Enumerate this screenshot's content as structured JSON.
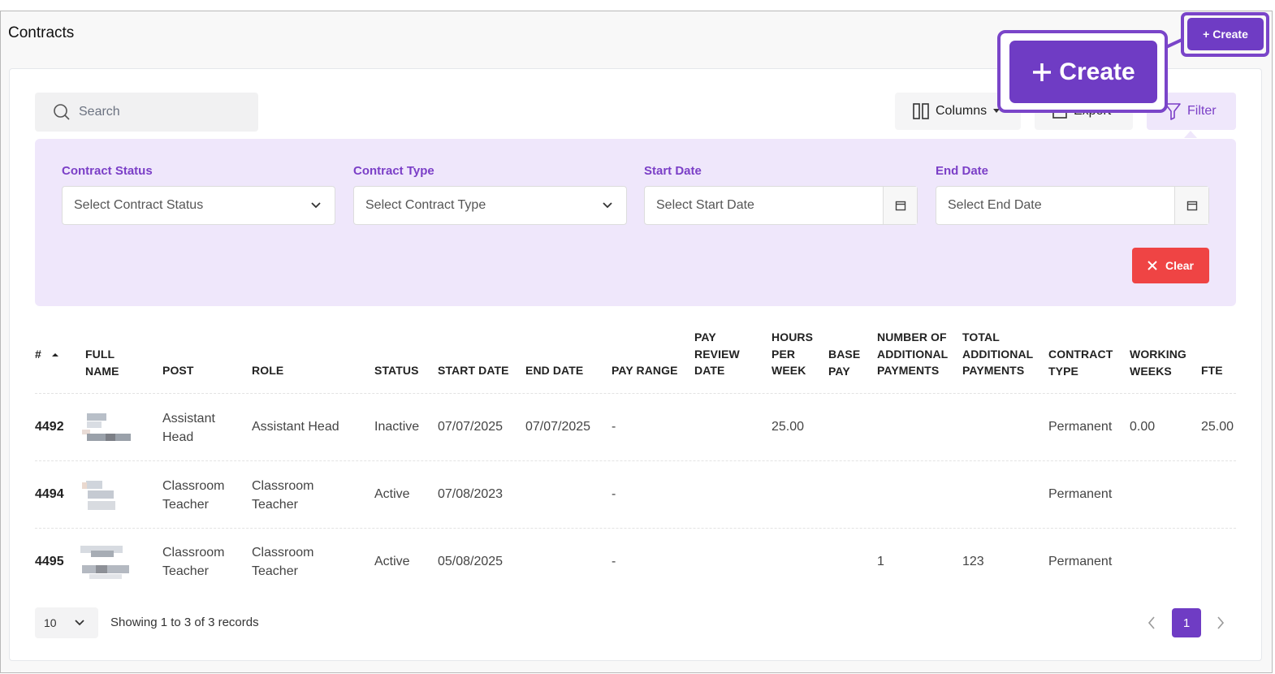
{
  "page": {
    "title": "Contracts"
  },
  "actions": {
    "create_label": "Create",
    "create_zoom_label": "Create"
  },
  "toolbar": {
    "search_placeholder": "Search",
    "columns_label": "Columns",
    "export_label": "Export",
    "filter_label": "Filter"
  },
  "filters": {
    "contract_status": {
      "label": "Contract Status",
      "placeholder": "Select Contract Status"
    },
    "contract_type": {
      "label": "Contract Type",
      "placeholder": "Select Contract Type"
    },
    "start_date": {
      "label": "Start Date",
      "placeholder": "Select Start Date"
    },
    "end_date": {
      "label": "End Date",
      "placeholder": "Select End Date"
    },
    "clear_label": "Clear"
  },
  "table": {
    "headers": {
      "id": "#",
      "full_name": [
        "FULL",
        "NAME"
      ],
      "post": "POST",
      "role": "ROLE",
      "status": "STATUS",
      "start_date": "START DATE",
      "end_date": "END DATE",
      "pay_range": "PAY RANGE",
      "pay_review_date": [
        "PAY",
        "REVIEW",
        "DATE"
      ],
      "hours_per_week": [
        "HOURS",
        "PER",
        "WEEK"
      ],
      "base_pay": [
        "BASE",
        "PAY"
      ],
      "num_additional": [
        "NUMBER OF",
        "ADDITIONAL",
        "PAYMENTS"
      ],
      "total_additional": [
        "TOTAL",
        "ADDITIONAL",
        "PAYMENTS"
      ],
      "contract_type": [
        "CONTRACT",
        "TYPE"
      ],
      "working_weeks": [
        "WORKING",
        "WEEKS"
      ],
      "fte": "FTE"
    },
    "rows": [
      {
        "id": "4492",
        "post": [
          "Assistant",
          "Head"
        ],
        "role": "Assistant Head",
        "status": "Inactive",
        "start_date": "07/07/2025",
        "end_date": "07/07/2025",
        "pay_range": "-",
        "hours_per_week": "25.00",
        "num_additional": "",
        "total_additional": "",
        "contract_type": "Permanent",
        "working_weeks": "0.00",
        "fte": "25.00"
      },
      {
        "id": "4494",
        "post": [
          "Classroom",
          "Teacher"
        ],
        "role": [
          "Classroom",
          "Teacher"
        ],
        "status": "Active",
        "start_date": "07/08/2023",
        "end_date": "",
        "pay_range": "-",
        "hours_per_week": "",
        "num_additional": "",
        "total_additional": "",
        "contract_type": "Permanent",
        "working_weeks": "",
        "fte": ""
      },
      {
        "id": "4495",
        "post": [
          "Classroom",
          "Teacher"
        ],
        "role": [
          "Classroom",
          "Teacher"
        ],
        "status": "Active",
        "start_date": "05/08/2025",
        "end_date": "",
        "pay_range": "-",
        "hours_per_week": "",
        "num_additional": "1",
        "total_additional": "123",
        "contract_type": "Permanent",
        "working_weeks": "",
        "fte": ""
      }
    ]
  },
  "pagination": {
    "page_size": "10",
    "summary": "Showing 1 to 3 of 3 records",
    "current_page": "1"
  },
  "colors": {
    "accent": "#6f3cc4",
    "filter_bg": "#efe7fb",
    "danger": "#ef4444"
  }
}
